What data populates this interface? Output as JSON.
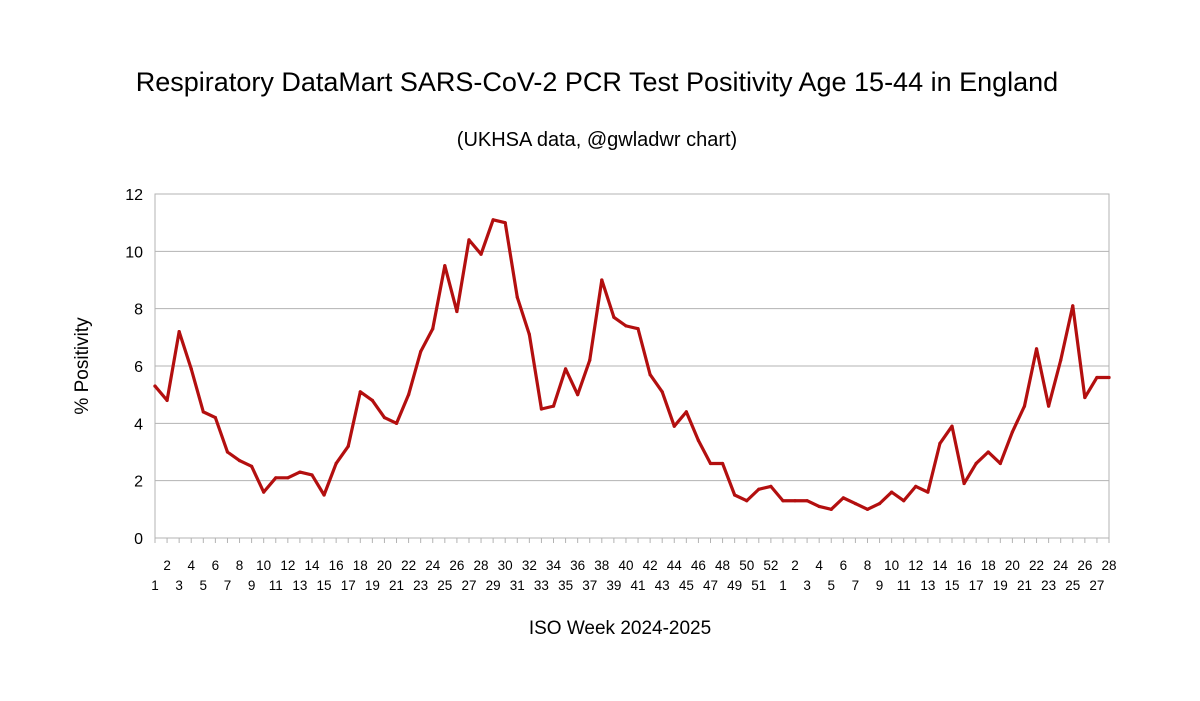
{
  "chart_data": {
    "type": "line",
    "title": "Respiratory DataMart SARS-CoV-2 PCR Test Positivity Age 15-44 in England",
    "subtitle": "(UKHSA data, @gwladwr chart)",
    "xlabel": "ISO Week 2024-2025",
    "ylabel": "%  Positivity",
    "ylim": [
      0,
      12
    ],
    "yticks": [
      "0",
      "2",
      "4",
      "6",
      "8",
      "10",
      "12"
    ],
    "grid": true,
    "legend": "none",
    "line_color": "#b30f0f",
    "categories": [
      "1",
      "2",
      "3",
      "4",
      "5",
      "6",
      "7",
      "8",
      "9",
      "10",
      "11",
      "12",
      "13",
      "14",
      "15",
      "16",
      "17",
      "18",
      "19",
      "20",
      "21",
      "22",
      "23",
      "24",
      "25",
      "26",
      "27",
      "28",
      "29",
      "30",
      "31",
      "32",
      "33",
      "34",
      "35",
      "36",
      "37",
      "38",
      "39",
      "40",
      "41",
      "42",
      "43",
      "44",
      "45",
      "46",
      "47",
      "48",
      "49",
      "50",
      "51",
      "52",
      "1",
      "2",
      "3",
      "4",
      "5",
      "6",
      "7",
      "8",
      "9",
      "10",
      "11",
      "12",
      "13",
      "14",
      "15",
      "16",
      "17",
      "18",
      "19",
      "20",
      "21",
      "22",
      "23",
      "24",
      "25",
      "26",
      "27",
      "28"
    ],
    "series": [
      {
        "values": [
          5.3,
          4.8,
          7.2,
          5.9,
          4.4,
          4.2,
          3.0,
          2.7,
          2.5,
          1.6,
          2.1,
          2.1,
          2.3,
          2.2,
          1.5,
          2.6,
          3.2,
          5.1,
          4.8,
          4.2,
          4.0,
          5.0,
          6.5,
          7.3,
          9.5,
          7.9,
          10.4,
          9.9,
          11.1,
          11.0,
          8.4,
          7.1,
          4.5,
          4.6,
          5.9,
          5.0,
          6.2,
          9.0,
          7.7,
          7.4,
          7.3,
          5.7,
          5.1,
          3.9,
          4.4,
          3.4,
          2.6,
          2.6,
          1.5,
          1.3,
          1.7,
          1.8,
          1.3,
          1.3,
          1.3,
          1.1,
          1.0,
          1.4,
          1.2,
          1.0,
          1.2,
          1.6,
          1.3,
          1.8,
          1.6,
          3.3,
          3.9,
          1.9,
          2.6,
          3.0,
          2.6,
          3.7,
          4.6,
          6.6,
          4.6,
          6.2,
          8.1,
          4.9,
          5.6,
          5.6
        ]
      }
    ]
  }
}
